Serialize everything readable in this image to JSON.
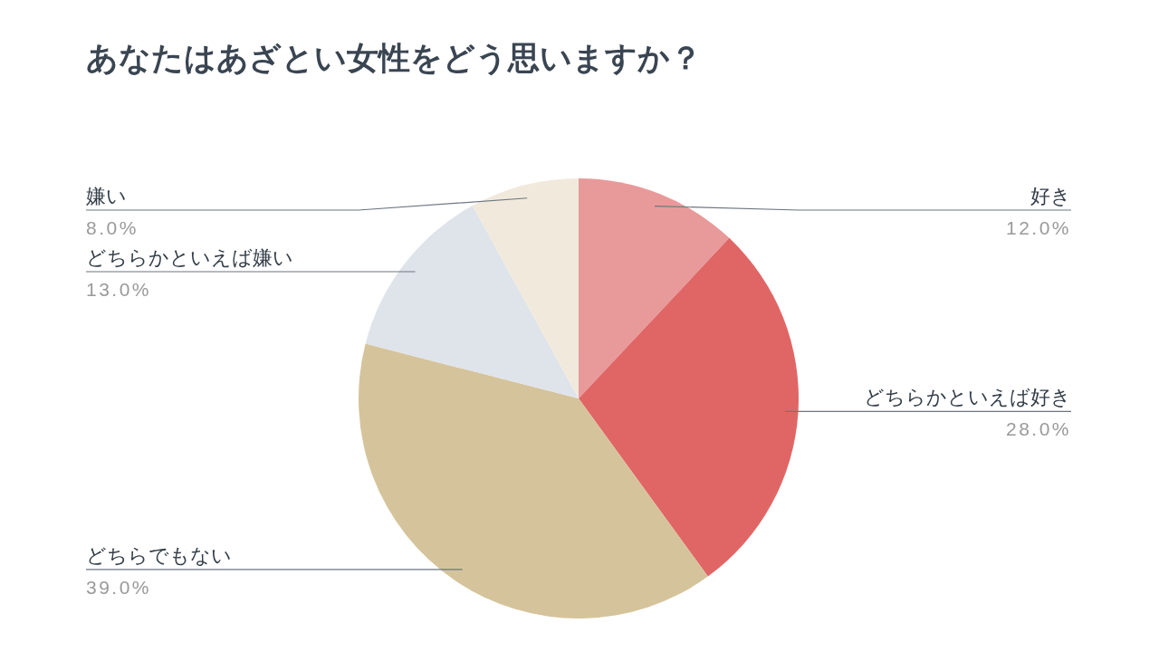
{
  "chart_data": {
    "type": "pie",
    "title": "あなたはあざとい女性をどう思いますか？",
    "categories": [
      "好き",
      "どちらかといえば好き",
      "どちらでもない",
      "どちらかといえば嫌い",
      "嫌い"
    ],
    "values": [
      12,
      28,
      39,
      13,
      8
    ],
    "colors": [
      "#e89a9a",
      "#e06666",
      "#d5c49b",
      "#dfe3ea",
      "#f1eadc"
    ],
    "value_labels": [
      "12.0%",
      "28.0%",
      "39.0%",
      "13.0%",
      "8.0%"
    ]
  }
}
